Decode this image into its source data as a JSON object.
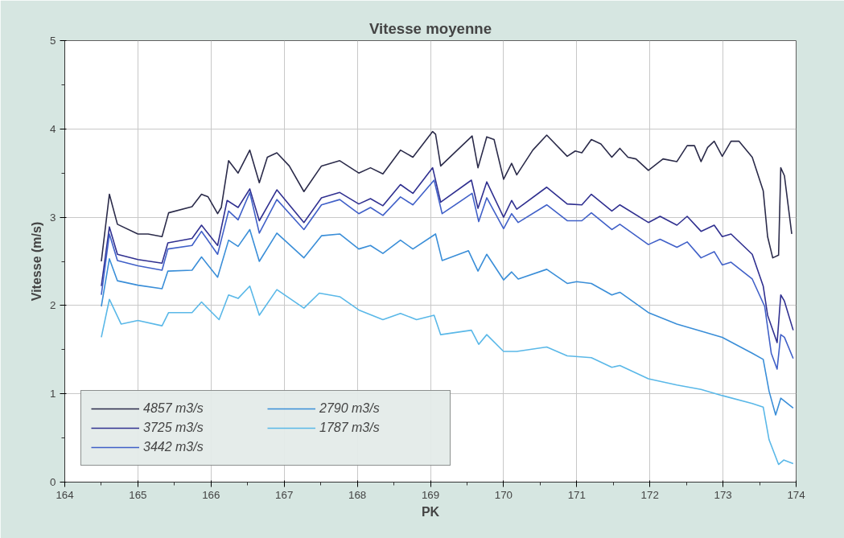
{
  "chart_data": {
    "type": "line",
    "title": "Vitesse moyenne",
    "xlabel": "PK",
    "ylabel": "Vitesse (m/s)",
    "xlim": [
      164,
      174
    ],
    "ylim": [
      0,
      5
    ],
    "xticks": [
      164,
      165,
      166,
      167,
      168,
      169,
      170,
      171,
      172,
      173,
      174
    ],
    "yticks": [
      0,
      1,
      2,
      3,
      4,
      5
    ],
    "grid": true,
    "legend": "bottom left",
    "marker": "none",
    "line_style": "solid",
    "series": [
      {
        "name": "4857 m3/s",
        "color": "#2b2b4a",
        "x": [
          164.5,
          164.61,
          164.72,
          165.0,
          165.14,
          165.33,
          165.42,
          165.74,
          165.87,
          165.96,
          166.09,
          166.14,
          166.24,
          166.37,
          166.53,
          166.66,
          166.77,
          166.9,
          167.07,
          167.27,
          167.51,
          167.76,
          168.02,
          168.18,
          168.35,
          168.59,
          168.76,
          169.03,
          169.07,
          169.14,
          169.33,
          169.57,
          169.65,
          169.77,
          169.87,
          170.0,
          170.11,
          170.18,
          170.4,
          170.59,
          170.87,
          170.98,
          171.07,
          171.2,
          171.33,
          171.48,
          171.59,
          171.7,
          171.81,
          171.98,
          172.18,
          172.37,
          172.51,
          172.61,
          172.7,
          172.79,
          172.88,
          172.99,
          173.11,
          173.22,
          173.4,
          173.55,
          173.61,
          173.68,
          173.76,
          173.79,
          173.84,
          173.94
        ],
        "values": [
          2.5,
          3.26,
          2.92,
          2.81,
          2.81,
          2.78,
          3.05,
          3.12,
          3.26,
          3.23,
          3.04,
          3.11,
          3.64,
          3.5,
          3.76,
          3.39,
          3.68,
          3.73,
          3.58,
          3.29,
          3.58,
          3.64,
          3.5,
          3.56,
          3.49,
          3.76,
          3.68,
          3.97,
          3.94,
          3.58,
          3.73,
          3.92,
          3.56,
          3.91,
          3.88,
          3.43,
          3.61,
          3.48,
          3.76,
          3.93,
          3.69,
          3.75,
          3.73,
          3.88,
          3.83,
          3.68,
          3.78,
          3.68,
          3.66,
          3.53,
          3.66,
          3.63,
          3.81,
          3.81,
          3.63,
          3.79,
          3.86,
          3.69,
          3.86,
          3.86,
          3.68,
          3.3,
          2.78,
          2.54,
          2.57,
          3.56,
          3.47,
          2.81
        ]
      },
      {
        "name": "3725 m3/s",
        "color": "#303090",
        "x": [
          164.5,
          164.61,
          164.72,
          165.0,
          165.33,
          165.41,
          165.74,
          165.87,
          166.09,
          166.22,
          166.37,
          166.53,
          166.66,
          166.9,
          167.27,
          167.51,
          167.76,
          168.02,
          168.18,
          168.35,
          168.59,
          168.76,
          169.03,
          169.14,
          169.56,
          169.65,
          169.77,
          170.0,
          170.11,
          170.18,
          170.59,
          170.87,
          171.07,
          171.2,
          171.48,
          171.59,
          171.98,
          172.14,
          172.37,
          172.51,
          172.7,
          172.88,
          172.99,
          173.11,
          173.4,
          173.55,
          173.61,
          173.74,
          173.79,
          173.84,
          173.96
        ],
        "values": [
          2.22,
          2.89,
          2.58,
          2.52,
          2.48,
          2.71,
          2.76,
          2.91,
          2.68,
          3.19,
          3.11,
          3.32,
          2.96,
          3.31,
          2.94,
          3.22,
          3.28,
          3.15,
          3.21,
          3.13,
          3.37,
          3.27,
          3.56,
          3.17,
          3.42,
          3.1,
          3.4,
          3.0,
          3.19,
          3.09,
          3.34,
          3.15,
          3.14,
          3.26,
          3.07,
          3.14,
          2.94,
          3.01,
          2.91,
          3.01,
          2.84,
          2.91,
          2.78,
          2.81,
          2.58,
          2.22,
          1.89,
          1.58,
          2.12,
          2.05,
          1.72
        ]
      },
      {
        "name": "3442 m3/s",
        "color": "#4060c8",
        "x": [
          164.5,
          164.61,
          164.72,
          165.0,
          165.33,
          165.41,
          165.74,
          165.87,
          166.09,
          166.24,
          166.37,
          166.53,
          166.66,
          166.9,
          167.27,
          167.51,
          167.76,
          168.02,
          168.18,
          168.35,
          168.59,
          168.76,
          169.05,
          169.16,
          169.57,
          169.66,
          169.77,
          170.0,
          170.11,
          170.2,
          170.59,
          170.87,
          171.07,
          171.2,
          171.48,
          171.59,
          171.98,
          172.14,
          172.37,
          172.51,
          172.7,
          172.88,
          172.99,
          173.11,
          173.4,
          173.57,
          173.66,
          173.74,
          173.79,
          173.84,
          173.96
        ],
        "values": [
          2.12,
          2.81,
          2.51,
          2.45,
          2.4,
          2.64,
          2.68,
          2.84,
          2.58,
          3.07,
          2.97,
          3.28,
          2.82,
          3.2,
          2.86,
          3.14,
          3.2,
          3.04,
          3.11,
          3.02,
          3.23,
          3.14,
          3.42,
          3.04,
          3.27,
          2.95,
          3.22,
          2.87,
          3.04,
          2.94,
          3.14,
          2.96,
          2.96,
          3.05,
          2.86,
          2.92,
          2.69,
          2.75,
          2.66,
          2.72,
          2.54,
          2.61,
          2.46,
          2.49,
          2.3,
          1.99,
          1.46,
          1.28,
          1.67,
          1.64,
          1.4
        ]
      },
      {
        "name": "2790 m3/s",
        "color": "#3a8ed8",
        "x": [
          164.5,
          164.61,
          164.72,
          165.0,
          165.33,
          165.41,
          165.74,
          165.87,
          166.09,
          166.24,
          166.37,
          166.53,
          166.66,
          166.9,
          167.27,
          167.51,
          167.76,
          168.02,
          168.18,
          168.35,
          168.59,
          168.76,
          169.07,
          169.16,
          169.52,
          169.65,
          169.77,
          170.0,
          170.11,
          170.2,
          170.59,
          170.87,
          171.0,
          171.2,
          171.48,
          171.59,
          171.98,
          172.37,
          172.7,
          172.99,
          173.4,
          173.55,
          173.63,
          173.72,
          173.79,
          173.96
        ],
        "values": [
          1.99,
          2.53,
          2.28,
          2.23,
          2.19,
          2.39,
          2.4,
          2.55,
          2.32,
          2.74,
          2.67,
          2.86,
          2.5,
          2.82,
          2.54,
          2.79,
          2.81,
          2.64,
          2.68,
          2.59,
          2.74,
          2.64,
          2.81,
          2.51,
          2.62,
          2.39,
          2.58,
          2.29,
          2.38,
          2.3,
          2.41,
          2.25,
          2.27,
          2.25,
          2.12,
          2.15,
          1.92,
          1.79,
          1.71,
          1.64,
          1.46,
          1.39,
          1.03,
          0.76,
          0.95,
          0.84
        ]
      },
      {
        "name": "1787 m3/s",
        "color": "#5ab8e8",
        "x": [
          164.5,
          164.61,
          164.77,
          165.0,
          165.33,
          165.42,
          165.74,
          165.87,
          166.11,
          166.24,
          166.37,
          166.53,
          166.66,
          166.9,
          167.27,
          167.48,
          167.76,
          168.02,
          168.35,
          168.59,
          168.81,
          169.05,
          169.14,
          169.56,
          169.66,
          169.77,
          170.0,
          170.18,
          170.59,
          170.87,
          171.2,
          171.48,
          171.59,
          171.98,
          172.37,
          172.7,
          172.99,
          173.4,
          173.55,
          173.63,
          173.76,
          173.83,
          173.96
        ],
        "values": [
          1.64,
          2.07,
          1.79,
          1.83,
          1.77,
          1.92,
          1.92,
          2.04,
          1.84,
          2.12,
          2.08,
          2.22,
          1.89,
          2.18,
          1.97,
          2.14,
          2.1,
          1.95,
          1.84,
          1.91,
          1.84,
          1.89,
          1.67,
          1.72,
          1.56,
          1.67,
          1.48,
          1.48,
          1.53,
          1.43,
          1.41,
          1.3,
          1.32,
          1.17,
          1.1,
          1.05,
          0.98,
          0.89,
          0.85,
          0.48,
          0.2,
          0.25,
          0.21
        ]
      }
    ]
  }
}
